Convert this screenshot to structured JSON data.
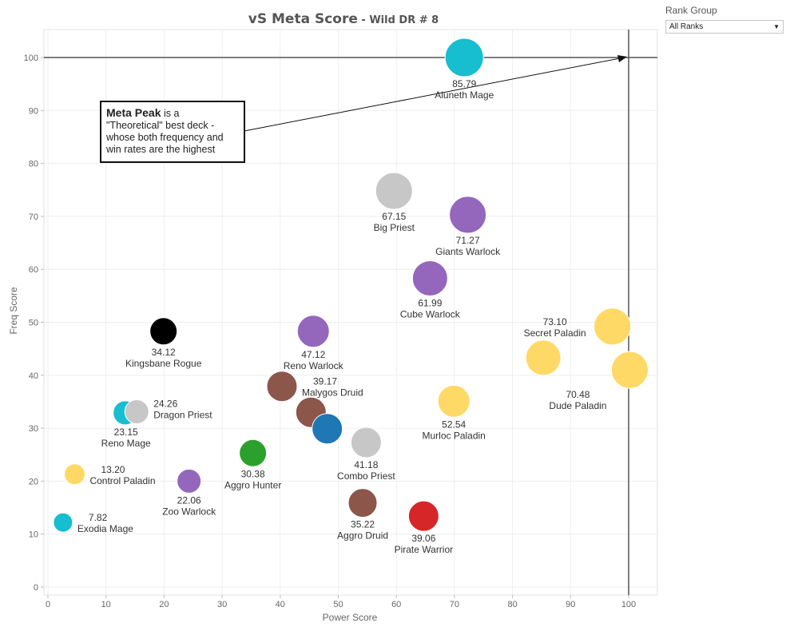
{
  "filter": {
    "title": "Rank Group",
    "selected": "All Ranks"
  },
  "annotation": {
    "bold": "Meta Peak",
    "lines": [
      " is a",
      "\"Theoretical\" best deck -",
      "whose both frequency and",
      "win rates are the highest"
    ]
  },
  "chart_data": {
    "type": "scatter",
    "title": "vS Meta Score",
    "subtitle": "Wild DR # 8",
    "title_separator": " - ",
    "xlabel": "Power Score",
    "ylabel": "Freq Score",
    "xlim": [
      -1,
      105
    ],
    "ylim": [
      -1,
      105
    ],
    "xticks": [
      0,
      10,
      20,
      30,
      40,
      50,
      60,
      70,
      80,
      90,
      100
    ],
    "yticks": [
      0,
      10,
      20,
      30,
      40,
      50,
      60,
      70,
      80,
      90,
      100
    ],
    "grid": true,
    "reference_lines": {
      "x": 100,
      "y": 100
    },
    "colors": {
      "mage": "#17becf",
      "priest": "#c7c7c7",
      "warlock": "#9467bd",
      "paladin": "#ffd966",
      "druid": "#8c564b",
      "rogue": "#000000",
      "shaman": "#1f77b4",
      "hunter": "#2ca02c",
      "warrior": "#d62728"
    },
    "points": [
      {
        "name": "Aluneth Mage",
        "score": "85.79",
        "x": 71.7,
        "y": 100,
        "r": 24,
        "color": "mage",
        "label_pos": "below"
      },
      {
        "name": "Big Priest",
        "score": "67.15",
        "x": 59.6,
        "y": 74.8,
        "r": 23,
        "color": "priest",
        "label_pos": "below"
      },
      {
        "name": "Giants Warlock",
        "score": "71.27",
        "x": 72.3,
        "y": 70.3,
        "r": 23,
        "color": "warlock",
        "label_pos": "below"
      },
      {
        "name": "Cube Warlock",
        "score": "61.99",
        "x": 65.8,
        "y": 58.3,
        "r": 22,
        "color": "warlock",
        "label_pos": "below"
      },
      {
        "name": "Secret Paladin",
        "score": "73.10",
        "x": 97.2,
        "y": 49.2,
        "r": 23,
        "color": "paladin",
        "label_pos": "left-above"
      },
      {
        "name": "Dude Paladin",
        "score": "70.48",
        "x": 100.2,
        "y": 41.0,
        "r": 23,
        "color": "paladin",
        "label_pos": "left-below"
      },
      {
        "name": "",
        "score": "",
        "x": 85.3,
        "y": 43.3,
        "r": 22,
        "color": "paladin",
        "label_pos": "none"
      },
      {
        "name": "Kingsbane Rogue",
        "score": "34.12",
        "x": 19.9,
        "y": 48.3,
        "r": 17,
        "color": "rogue",
        "label_pos": "below"
      },
      {
        "name": "Reno Warlock",
        "score": "47.12",
        "x": 45.7,
        "y": 48.3,
        "r": 20,
        "color": "warlock",
        "label_pos": "below"
      },
      {
        "name": "Malygos Druid",
        "score": "39.17",
        "x": 40.3,
        "y": 37.9,
        "r": 19,
        "color": "druid",
        "label_pos": "right"
      },
      {
        "name": "",
        "score": "",
        "x": 45.3,
        "y": 33.0,
        "r": 19,
        "color": "druid",
        "label_pos": "none"
      },
      {
        "name": "",
        "score": "",
        "x": 48.1,
        "y": 29.9,
        "r": 19,
        "color": "shaman",
        "label_pos": "none"
      },
      {
        "name": "Combo Priest",
        "score": "41.18",
        "x": 54.8,
        "y": 27.3,
        "r": 19,
        "color": "priest",
        "label_pos": "below"
      },
      {
        "name": "Murloc Paladin",
        "score": "52.54",
        "x": 69.9,
        "y": 35.1,
        "r": 20,
        "color": "paladin",
        "label_pos": "below"
      },
      {
        "name": "Reno Mage",
        "score": "23.15",
        "x": 13.3,
        "y": 32.9,
        "r": 15,
        "color": "mage",
        "label_pos": "below"
      },
      {
        "name": "Dragon Priest",
        "score": "24.26",
        "x": 15.3,
        "y": 33.1,
        "r": 15,
        "color": "priest",
        "label_pos": "right"
      },
      {
        "name": "Aggro Hunter",
        "score": "30.38",
        "x": 35.3,
        "y": 25.3,
        "r": 17,
        "color": "hunter",
        "label_pos": "below"
      },
      {
        "name": "Control Paladin",
        "score": "13.20",
        "x": 4.6,
        "y": 21.3,
        "r": 13,
        "color": "paladin",
        "label_pos": "right"
      },
      {
        "name": "Zoo Warlock",
        "score": "22.06",
        "x": 24.3,
        "y": 20.0,
        "r": 15,
        "color": "warlock",
        "label_pos": "below"
      },
      {
        "name": "Aggro Druid",
        "score": "35.22",
        "x": 54.2,
        "y": 15.9,
        "r": 18,
        "color": "druid",
        "label_pos": "below"
      },
      {
        "name": "Pirate Warrior",
        "score": "39.06",
        "x": 64.7,
        "y": 13.4,
        "r": 19,
        "color": "warrior",
        "label_pos": "below"
      },
      {
        "name": "Exodia Mage",
        "score": "7.82",
        "x": 2.6,
        "y": 12.2,
        "r": 12,
        "color": "mage",
        "label_pos": "right"
      }
    ]
  }
}
